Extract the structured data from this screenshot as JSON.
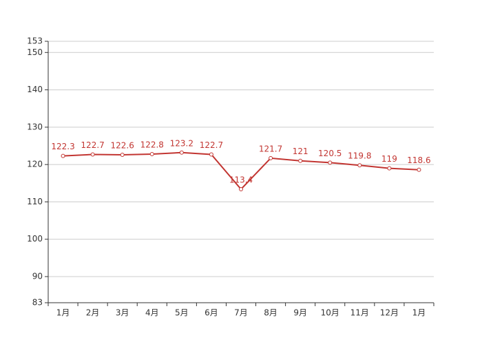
{
  "chart_data": {
    "type": "line",
    "categories": [
      "1月",
      "2月",
      "3月",
      "4月",
      "5月",
      "6月",
      "7月",
      "8月",
      "9月",
      "10月",
      "11月",
      "12月",
      "1月"
    ],
    "values": [
      122.3,
      122.7,
      122.6,
      122.8,
      123.2,
      122.7,
      113.4,
      121.7,
      121,
      120.5,
      119.8,
      119,
      118.6
    ],
    "color": "#c23531",
    "ylim": [
      83,
      153
    ],
    "yticks": [
      83,
      90,
      100,
      110,
      120,
      130,
      140,
      150,
      153
    ],
    "grid": true
  }
}
